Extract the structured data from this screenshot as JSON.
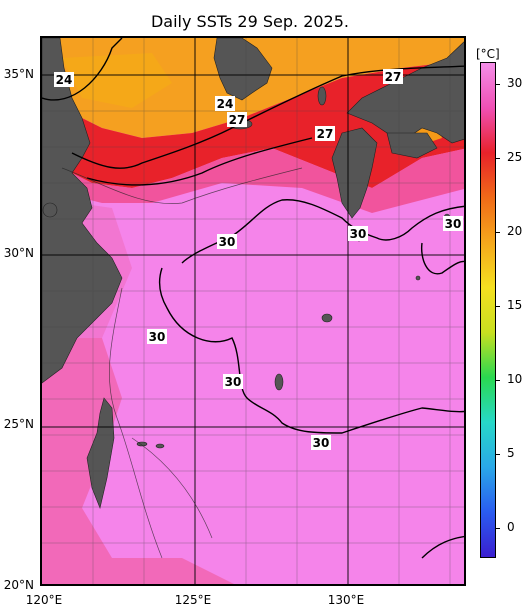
{
  "title": "Daily SSTs 29 Sep. 2025.",
  "colorbar": {
    "unit": "[°C]",
    "ticks": [
      "30",
      "25",
      "20",
      "15",
      "10",
      "5",
      "0"
    ],
    "min": -2,
    "max": 31.5,
    "stops": [
      "#3a1fd0",
      "#2a5cf0",
      "#2aa8e8",
      "#27d8c8",
      "#2ad850",
      "#c8e020",
      "#f5e020",
      "#f5a81c",
      "#f06a18",
      "#e8222a",
      "#f050b4",
      "#f48ee8"
    ]
  },
  "axes": {
    "x_ticks": [
      "120°E",
      "125°E",
      "130°E"
    ],
    "y_ticks": [
      "35°N",
      "30°N",
      "25°N",
      "20°N"
    ]
  },
  "contour_labels": [
    "24",
    "24",
    "27",
    "27",
    "27",
    "30",
    "30",
    "30",
    "30",
    "30",
    "30"
  ],
  "colors": {
    "land": "#555555",
    "warm_sea": "#f584ea",
    "orange": "#f5a020",
    "red": "#e8222a"
  }
}
